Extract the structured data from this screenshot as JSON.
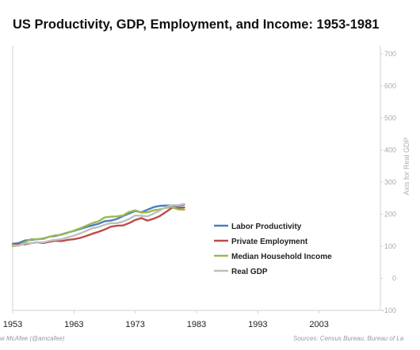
{
  "title": "US Productivity, GDP, Employment, and Income: 1953-1981",
  "footer": {
    "credit": "w McAfee  (@amcafee)",
    "sources": "Sources: Census Bureau, Bureau of La"
  },
  "chart_data": {
    "type": "line",
    "title": "US Productivity, GDP, Employment, and Income: 1953-1981",
    "xlabel": "",
    "ylabel": "",
    "y2label": "Axis for Real GDP",
    "xlim": [
      1953,
      2013
    ],
    "ylim": [
      -100,
      700
    ],
    "x_ticks": [
      "1953",
      "1963",
      "1973",
      "1983",
      "1993",
      "2003"
    ],
    "y_ticks": [
      "-100",
      "0",
      "100",
      "200",
      "300",
      "400",
      "500",
      "600",
      "700"
    ],
    "grid": false,
    "legend": "center-right",
    "colors": {
      "Labor Productivity": "#4a7ebb",
      "Private Employment": "#be4b48",
      "Median Household Income": "#98b954",
      "Real GDP": "#bfbfbf"
    },
    "x": [
      1953,
      1954,
      1955,
      1956,
      1957,
      1958,
      1959,
      1960,
      1961,
      1962,
      1963,
      1964,
      1965,
      1966,
      1967,
      1968,
      1969,
      1970,
      1971,
      1972,
      1973,
      1974,
      1975,
      1976,
      1977,
      1978,
      1979,
      1980,
      1981
    ],
    "series": [
      {
        "name": "Labor Productivity",
        "values": [
          108,
          110,
          118,
          120,
          122,
          124,
          130,
          132,
          137,
          143,
          148,
          154,
          160,
          165,
          170,
          178,
          180,
          185,
          194,
          202,
          210,
          206,
          214,
          222,
          226,
          227,
          227,
          226,
          230
        ]
      },
      {
        "name": "Private Employment",
        "values": [
          104,
          106,
          106,
          110,
          112,
          110,
          114,
          117,
          116,
          120,
          122,
          126,
          132,
          139,
          145,
          152,
          161,
          164,
          165,
          172,
          182,
          188,
          180,
          186,
          194,
          207,
          220,
          220,
          221
        ]
      },
      {
        "name": "Median Household Income",
        "values": [
          100,
          103,
          113,
          122,
          122,
          123,
          130,
          134,
          136,
          142,
          149,
          156,
          164,
          172,
          178,
          190,
          192,
          193,
          196,
          207,
          212,
          205,
          206,
          212,
          215,
          220,
          222,
          215,
          214
        ]
      },
      {
        "name": "Real GDP",
        "values": [
          103,
          102,
          109,
          110,
          112,
          112,
          117,
          120,
          122,
          128,
          133,
          140,
          148,
          156,
          160,
          167,
          172,
          172,
          177,
          185,
          196,
          195,
          193,
          202,
          211,
          222,
          228,
          228,
          232
        ]
      }
    ]
  }
}
